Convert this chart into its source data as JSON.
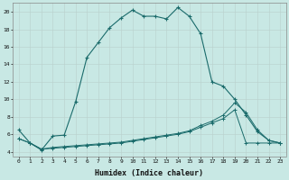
{
  "xlabel": "Humidex (Indice chaleur)",
  "background_color": "#c8e8e4",
  "line_color": "#1a6b6b",
  "xlim": [
    -0.5,
    23.5
  ],
  "ylim": [
    3.5,
    21.0
  ],
  "yticks": [
    4,
    6,
    8,
    10,
    12,
    14,
    16,
    18,
    20
  ],
  "xticks": [
    0,
    1,
    2,
    3,
    4,
    5,
    6,
    7,
    8,
    9,
    10,
    11,
    12,
    13,
    14,
    15,
    16,
    17,
    18,
    19,
    20,
    21,
    22,
    23
  ],
  "series1_x": [
    0,
    1,
    2,
    3,
    4,
    5,
    6,
    7,
    8,
    9,
    10,
    11,
    12,
    13,
    14,
    15,
    16,
    17,
    18,
    19,
    20,
    21,
    22,
    23
  ],
  "series1_y": [
    6.5,
    5.0,
    4.2,
    5.8,
    5.9,
    9.7,
    14.8,
    16.5,
    18.2,
    19.3,
    20.2,
    19.5,
    19.5,
    19.2,
    20.5,
    19.5,
    17.5,
    12.0,
    11.5,
    10.0,
    8.2,
    6.3,
    5.3,
    5.0
  ],
  "series2_x": [
    0,
    1,
    2,
    3,
    4,
    5,
    6,
    7,
    8,
    9,
    10,
    11,
    12,
    13,
    14,
    15,
    16,
    17,
    18,
    19,
    20,
    21,
    22,
    23
  ],
  "series2_y": [
    5.5,
    5.0,
    4.3,
    4.5,
    4.6,
    4.7,
    4.8,
    4.9,
    5.0,
    5.1,
    5.3,
    5.5,
    5.7,
    5.9,
    6.1,
    6.4,
    7.0,
    7.5,
    8.2,
    9.6,
    8.5,
    6.5,
    5.3,
    5.0
  ],
  "series3_x": [
    0,
    1,
    2,
    3,
    4,
    5,
    6,
    7,
    8,
    9,
    10,
    11,
    12,
    13,
    14,
    15,
    16,
    17,
    18,
    19,
    20,
    21,
    22,
    23
  ],
  "series3_y": [
    5.5,
    5.0,
    4.3,
    4.4,
    4.5,
    4.6,
    4.7,
    4.8,
    4.9,
    5.0,
    5.2,
    5.4,
    5.6,
    5.8,
    6.0,
    6.3,
    6.8,
    7.3,
    7.8,
    8.8,
    5.0,
    5.0,
    5.0,
    5.0
  ]
}
